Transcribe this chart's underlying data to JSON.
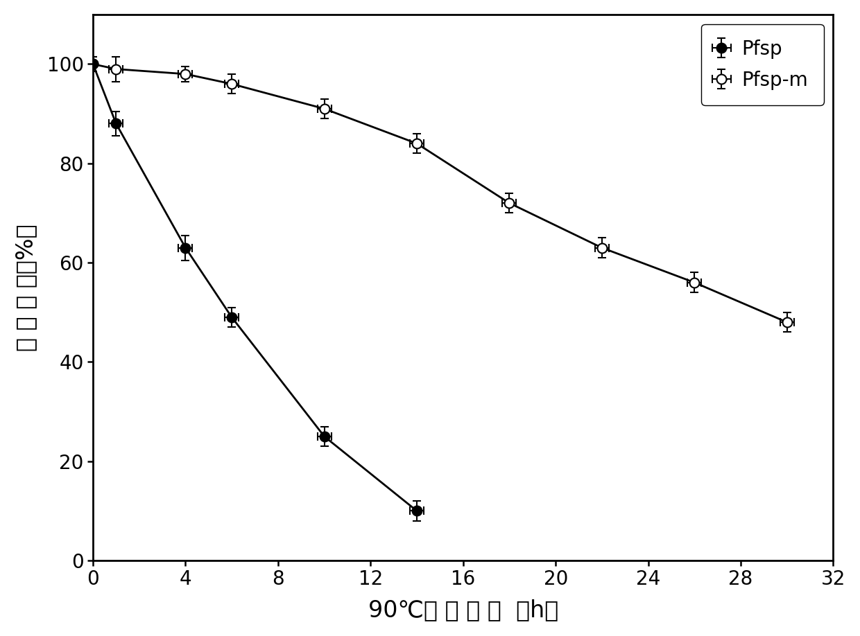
{
  "pfsp_x": [
    0,
    1,
    4,
    6,
    10,
    14
  ],
  "pfsp_y": [
    100,
    88,
    63,
    49,
    25,
    10
  ],
  "pfsp_yerr": [
    1.5,
    2.5,
    2.5,
    2.0,
    2.0,
    2.0
  ],
  "pfsp_xerr": [
    0,
    0.3,
    0.3,
    0.3,
    0.3,
    0.3
  ],
  "pfsp_m_x": [
    0,
    1,
    4,
    6,
    10,
    14,
    18,
    22,
    26,
    30
  ],
  "pfsp_m_y": [
    100,
    99,
    98,
    96,
    91,
    84,
    72,
    63,
    56,
    48
  ],
  "pfsp_m_yerr": [
    1.5,
    2.5,
    1.5,
    2.0,
    2.0,
    2.0,
    2.0,
    2.0,
    2.0,
    2.0
  ],
  "pfsp_m_xerr": [
    0,
    0.3,
    0.3,
    0.3,
    0.3,
    0.3,
    0.3,
    0.3,
    0.3,
    0.3
  ],
  "xlabel": "90℃保 温 时 间  （h）",
  "ylabel": "相 对 酶 活（%）",
  "xlim": [
    0,
    32
  ],
  "ylim": [
    0,
    110
  ],
  "xticks": [
    0,
    4,
    8,
    12,
    16,
    20,
    24,
    28,
    32
  ],
  "yticks": [
    0,
    20,
    40,
    60,
    80,
    100
  ],
  "legend_pfsp": "Pfsp",
  "legend_pfsp_m": "Pfsp-m",
  "line_color": "#000000",
  "marker_fill_pfsp": "#000000",
  "marker_fill_pfsp_m": "#ffffff",
  "marker_edge_color": "#000000",
  "marker_size": 10,
  "line_width": 2.0,
  "font_size_label": 24,
  "font_size_tick": 20,
  "font_size_legend": 20,
  "background_color": "#ffffff"
}
